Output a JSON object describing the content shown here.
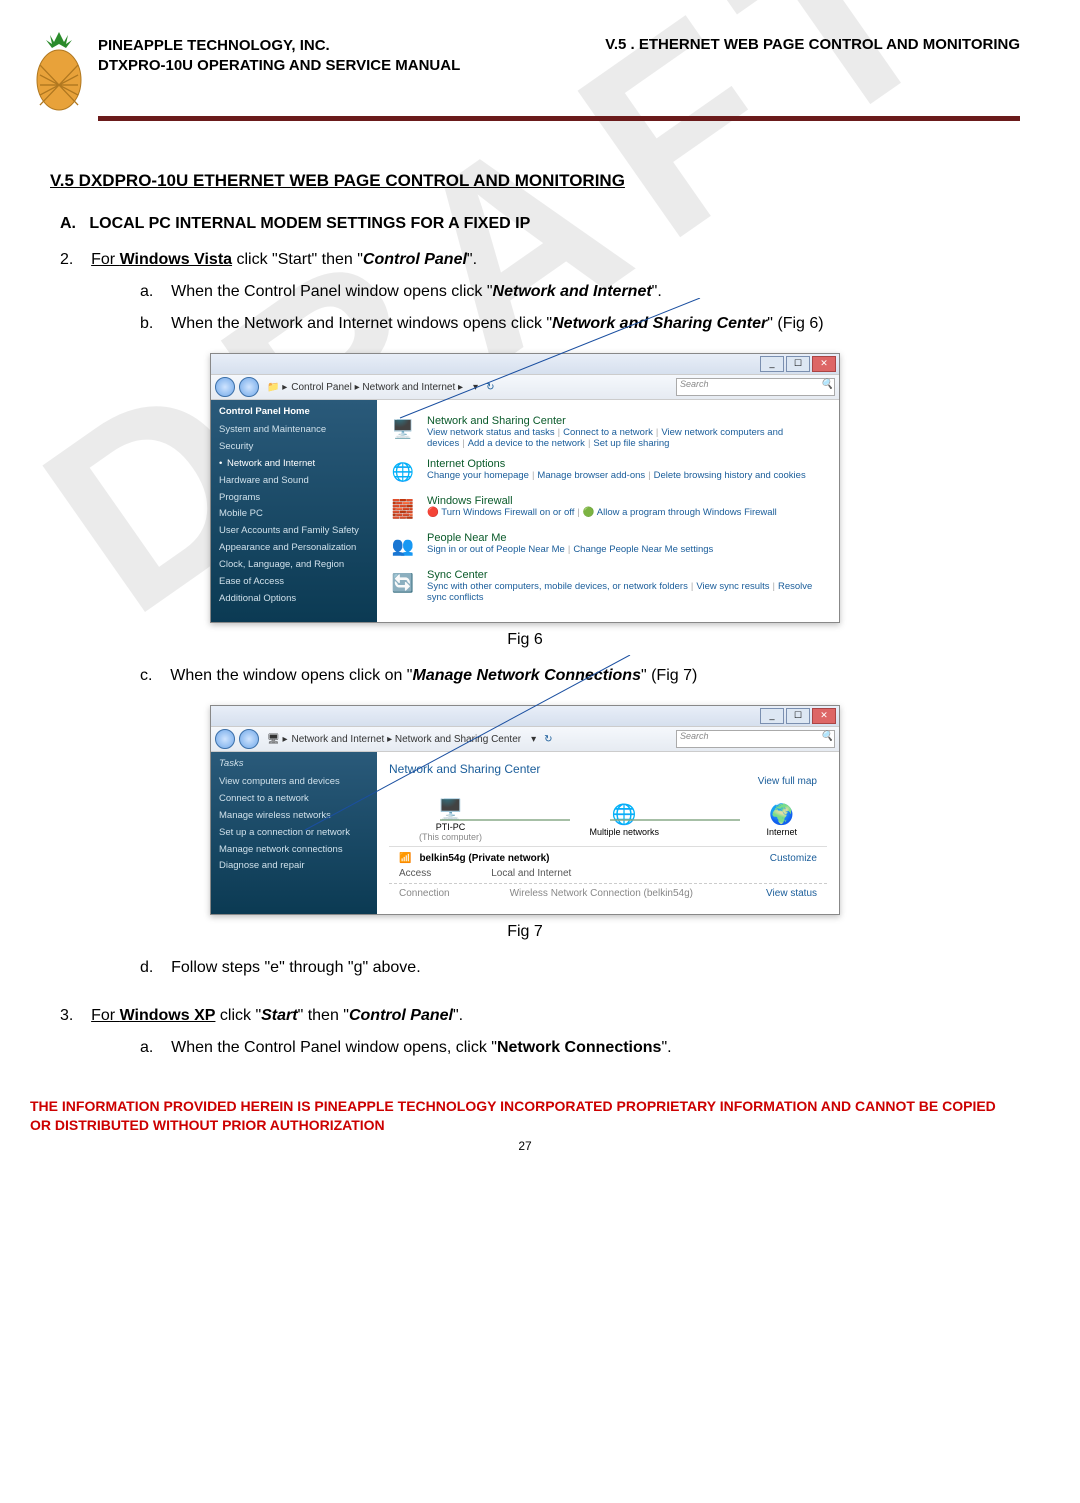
{
  "header": {
    "company": "PINEAPPLE TECHNOLOGY, INC.",
    "manual": "DTXPRO-10U OPERATING AND SERVICE MANUAL",
    "chapter": "V.5 . ETHERNET WEB PAGE CONTROL AND MONITORING"
  },
  "watermark": "DRAFT",
  "section_title": "V.5 DXDPRO-10U ETHERNET WEB PAGE CONTROL AND MONITORING",
  "sub_a": "LOCAL PC INTERNAL MODEM SETTINGS FOR A FIXED IP",
  "step2_prefix": "For ",
  "step2_os": "Windows Vista",
  "step2_mid": " click \"Start\" then \"",
  "step2_bold": "Control Panel",
  "step2_suffix": "\".",
  "sub_a_text1": "When the Control Panel window opens click \"",
  "sub_a_bold1": "Network and Internet",
  "sub_a_suffix1": "\".",
  "sub_b_text1": "When the Network and Internet windows opens click \"",
  "sub_b_bold1": "Network and Sharing Center",
  "sub_b_suffix1": "\" (Fig 6)",
  "sub_c_text1": "When the window opens click on \"",
  "sub_c_bold1": "Manage Network Connections",
  "sub_c_suffix1": "\" (Fig 7)",
  "sub_d": "Follow steps \"e\" through \"g\" above.",
  "step3_prefix": "For ",
  "step3_os": "Windows XP",
  "step3_mid": " click \"",
  "step3_bold1": "Start",
  "step3_mid2": "\" then \"",
  "step3_bold2": "Control Panel",
  "step3_suffix": "\".",
  "sub3a_text1": "When the Control Panel window opens, click \"",
  "sub3a_bold1": "Network Connections",
  "sub3a_suffix1": "\".",
  "fig6_caption": "Fig 6",
  "fig7_caption": "Fig 7",
  "footer_disclaimer": "THE INFORMATION PROVIDED HEREIN IS PINEAPPLE TECHNOLOGY INCORPORATED PROPRIETARY INFORMATION AND CANNOT BE COPIED OR DISTRIBUTED WITHOUT PRIOR AUTHORIZATION",
  "page_num": "27",
  "fig6": {
    "breadcrumb": "Control Panel  ▸  Network and Internet  ▸",
    "search": "Search",
    "sidebar_title": "Control Panel Home",
    "sidebar_items": [
      "System and Maintenance",
      "Security",
      "Network and Internet",
      "Hardware and Sound",
      "Programs",
      "Mobile PC",
      "User Accounts and Family Safety",
      "Appearance and Personalization",
      "Clock, Language, and Region",
      "Ease of Access",
      "Additional Options"
    ],
    "entries": [
      {
        "icon": "🖥️",
        "title": "Network and Sharing Center",
        "subs": [
          "View network status and tasks",
          "Connect to a network",
          "View network computers and devices",
          "Add a device to the network",
          "Set up file sharing"
        ]
      },
      {
        "icon": "🌐",
        "title": "Internet Options",
        "subs": [
          "Change your homepage",
          "Manage browser add-ons",
          "Delete browsing history and cookies"
        ]
      },
      {
        "icon": "🧱",
        "title": "Windows Firewall",
        "subs": [
          "🔴 Turn Windows Firewall on or off",
          "🟢 Allow a program through Windows Firewall"
        ]
      },
      {
        "icon": "👥",
        "title": "People Near Me",
        "subs": [
          "Sign in or out of People Near Me",
          "Change People Near Me settings"
        ]
      },
      {
        "icon": "🔄",
        "title": "Sync Center",
        "subs": [
          "Sync with other computers, mobile devices, or network folders",
          "View sync results",
          "Resolve sync conflicts"
        ]
      }
    ]
  },
  "fig7": {
    "breadcrumb": "Network and Internet  ▸  Network and Sharing Center",
    "search": "Search",
    "tasks_title": "Tasks",
    "tasks": [
      "View computers and devices",
      "Connect to a network",
      "Manage wireless networks",
      "Set up a connection or network",
      "Manage network connections",
      "Diagnose and repair"
    ],
    "main_title": "Network and Sharing Center",
    "view_full": "View full map",
    "nodes": [
      {
        "icon": "🖥️",
        "label": "PTI-PC",
        "sub": "(This computer)"
      },
      {
        "icon": "🌐",
        "label": "Multiple networks",
        "sub": ""
      },
      {
        "icon": "🌍",
        "label": "Internet",
        "sub": ""
      }
    ],
    "net_name": "belkin54g (Private network)",
    "customize": "Customize",
    "access_label": "Access",
    "access_val": "Local and Internet",
    "conn_label": "Connection",
    "conn_val": "Wireless Network Connection (belkin54g)",
    "view_status": "View status"
  },
  "colors": {
    "header_rule": "#6b1b1b",
    "disclaimer": "#c00000",
    "link": "#1a5d9a",
    "green_title": "#0a5a2a",
    "sidebar_grad_top": "#2a5a7a",
    "sidebar_grad_bottom": "#0b3a53"
  }
}
